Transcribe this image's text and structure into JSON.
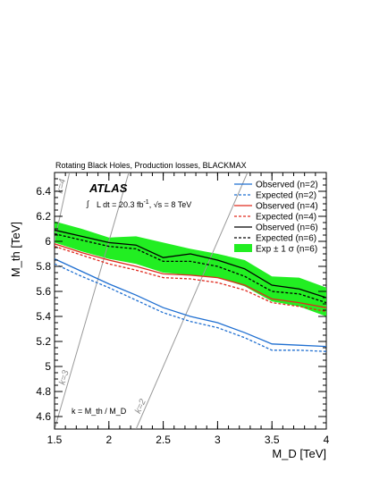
{
  "chart_data": {
    "type": "line",
    "title": "Rotating Black Holes, Production losses, BLACKMAX",
    "xlabel": "M_D [TeV]",
    "ylabel": "M_th [TeV]",
    "xlim": [
      1.5,
      4.0
    ],
    "ylim": [
      4.5,
      6.55
    ],
    "x_ticks": [
      "1.5",
      "2",
      "2.5",
      "3",
      "3.5",
      "4"
    ],
    "y_ticks": [
      "4.6",
      "4.8",
      "5",
      "5.2",
      "5.4",
      "5.6",
      "5.8",
      "6",
      "6.2",
      "6.4"
    ],
    "experiment": "ATLAS",
    "luminosity_text": "L dt = 20.3 fb",
    "luminosity_sup": "-1",
    "energy_text": ", √s = 8 TeV",
    "k_definition": "k = M_th / M_D",
    "k_lines": [
      {
        "k": 3,
        "label": "k=3"
      },
      {
        "k": 2,
        "label": "k=2"
      },
      {
        "k": 4,
        "label": "k=4"
      }
    ],
    "series": [
      {
        "name": "Observed (n=2)",
        "color": "#1f6fd1",
        "style": "solid",
        "x": [
          1.5,
          1.75,
          2.0,
          2.25,
          2.5,
          2.75,
          3.0,
          3.25,
          3.5,
          3.75,
          4.0
        ],
        "y": [
          5.86,
          5.76,
          5.66,
          5.57,
          5.47,
          5.4,
          5.35,
          5.27,
          5.18,
          5.17,
          5.16
        ]
      },
      {
        "name": "Expected (n=2)",
        "color": "#1f6fd1",
        "style": "dashed",
        "x": [
          1.5,
          1.75,
          2.0,
          2.25,
          2.5,
          2.75,
          3.0,
          3.25,
          3.5,
          3.75,
          4.0
        ],
        "y": [
          5.82,
          5.72,
          5.63,
          5.53,
          5.43,
          5.36,
          5.31,
          5.23,
          5.13,
          5.13,
          5.12
        ]
      },
      {
        "name": "Observed (n=4)",
        "color": "#e02a1f",
        "style": "solid",
        "x": [
          1.5,
          1.75,
          2.0,
          2.25,
          2.5,
          2.75,
          3.0,
          3.25,
          3.5,
          3.75,
          4.0
        ],
        "y": [
          5.98,
          5.91,
          5.85,
          5.8,
          5.74,
          5.73,
          5.71,
          5.65,
          5.54,
          5.51,
          5.47
        ]
      },
      {
        "name": "Expected (n=4)",
        "color": "#e02a1f",
        "style": "dashed",
        "x": [
          1.5,
          1.75,
          2.0,
          2.25,
          2.5,
          2.75,
          3.0,
          3.25,
          3.5,
          3.75,
          4.0
        ],
        "y": [
          5.96,
          5.89,
          5.82,
          5.77,
          5.71,
          5.7,
          5.67,
          5.61,
          5.51,
          5.48,
          5.44
        ]
      },
      {
        "name": "Observed (n=6)",
        "color": "#000000",
        "style": "solid",
        "x": [
          1.5,
          1.75,
          2.0,
          2.25,
          2.5,
          2.75,
          3.0,
          3.25,
          3.5,
          3.75,
          4.0
        ],
        "y": [
          6.09,
          6.04,
          5.99,
          5.97,
          5.87,
          5.9,
          5.85,
          5.78,
          5.65,
          5.62,
          5.55
        ]
      },
      {
        "name": "Expected (n=6)",
        "color": "#000000",
        "style": "dashed",
        "x": [
          1.5,
          1.75,
          2.0,
          2.25,
          2.5,
          2.75,
          3.0,
          3.25,
          3.5,
          3.75,
          4.0
        ],
        "y": [
          6.06,
          6.01,
          5.96,
          5.94,
          5.84,
          5.84,
          5.8,
          5.72,
          5.6,
          5.58,
          5.51
        ]
      }
    ],
    "band": {
      "name": "Exp ± 1 σ (n=6)",
      "color": "#22ee22",
      "x": [
        1.5,
        1.75,
        2.0,
        2.25,
        2.5,
        2.75,
        3.0,
        3.25,
        3.5,
        3.75,
        4.0
      ],
      "upper": [
        6.16,
        6.1,
        6.03,
        6.04,
        5.99,
        5.94,
        5.9,
        5.85,
        5.72,
        5.71,
        5.63
      ],
      "lower": [
        5.99,
        5.92,
        5.86,
        5.82,
        5.75,
        5.73,
        5.71,
        5.64,
        5.52,
        5.48,
        5.4
      ]
    },
    "legend_position": "top-right",
    "grid": false
  }
}
